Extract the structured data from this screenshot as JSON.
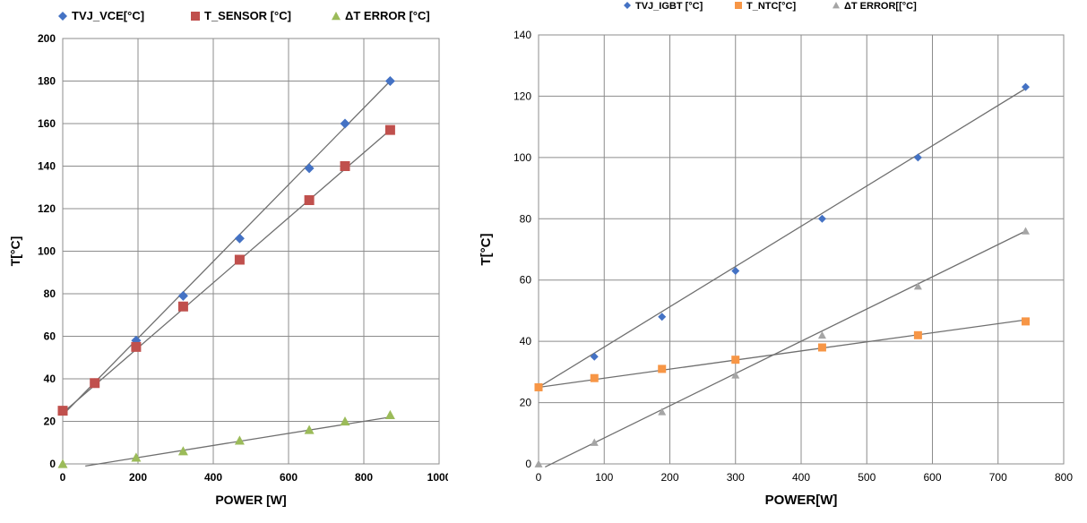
{
  "chart_data": [
    {
      "type": "scatter",
      "xlabel": "POWER [W]",
      "ylabel": "T[°C]",
      "xlim": [
        0,
        1000
      ],
      "ylim": [
        0,
        200
      ],
      "x_ticks": [
        "0",
        "200",
        "400",
        "600",
        "800",
        "1000"
      ],
      "y_ticks": [
        "0",
        "20",
        "40",
        "60",
        "80",
        "100",
        "120",
        "140",
        "160",
        "180",
        "200"
      ],
      "grid": true,
      "legend_position": "top",
      "series": [
        {
          "name": "TVJ_VCE[°C]",
          "color": "#4472c4",
          "marker": "diamond",
          "x": [
            0,
            85,
            195,
            320,
            470,
            655,
            750,
            870
          ],
          "y": [
            25,
            38,
            58,
            79,
            106,
            139,
            160,
            180
          ],
          "trend": [
            [
              0,
              23
            ],
            [
              870,
              180
            ]
          ]
        },
        {
          "name": "T_SENSOR [°C]",
          "color": "#c0504d",
          "marker": "square",
          "x": [
            0,
            85,
            195,
            320,
            470,
            655,
            750,
            870
          ],
          "y": [
            25,
            38,
            55,
            74,
            96,
            124,
            140,
            157
          ],
          "trend": [
            [
              0,
              24
            ],
            [
              870,
              157
            ]
          ]
        },
        {
          "name": "ΔT ERROR [°C]",
          "color": "#9bbb59",
          "marker": "triangle",
          "x": [
            0,
            195,
            320,
            470,
            655,
            750,
            870
          ],
          "y": [
            0,
            3,
            6,
            11,
            16,
            20,
            23
          ],
          "trend": [
            [
              60,
              -1
            ],
            [
              870,
              22
            ]
          ]
        }
      ]
    },
    {
      "type": "scatter",
      "xlabel": "POWER[W]",
      "ylabel": "T[°C]",
      "xlim": [
        0,
        800
      ],
      "ylim": [
        0,
        140
      ],
      "x_ticks": [
        "0",
        "100",
        "200",
        "300",
        "400",
        "500",
        "600",
        "700",
        "800"
      ],
      "y_ticks": [
        "0",
        "20",
        "40",
        "60",
        "80",
        "100",
        "120",
        "140"
      ],
      "grid": true,
      "legend_position": "top",
      "series": [
        {
          "name": "TVJ_IGBT [°C]",
          "color": "#4472c4",
          "marker": "diamond",
          "x": [
            0,
            85,
            188,
            300,
            432,
            578,
            742
          ],
          "y": [
            25,
            35,
            48,
            63,
            80,
            100,
            123
          ],
          "trend": [
            [
              0,
              25
            ],
            [
              742,
              122.5
            ]
          ]
        },
        {
          "name": "T_NTC[°C]",
          "color": "#f79646",
          "marker": "square",
          "x": [
            0,
            85,
            188,
            300,
            432,
            578,
            742
          ],
          "y": [
            25,
            28,
            31,
            34,
            38,
            42,
            46.5
          ],
          "trend": [
            [
              0,
              25
            ],
            [
              742,
              47
            ]
          ]
        },
        {
          "name": "ΔT ERROR[[°C]",
          "color": "#a5a5a5",
          "marker": "triangle",
          "x": [
            0,
            85,
            188,
            300,
            432,
            578,
            742
          ],
          "y": [
            0,
            7,
            17,
            29,
            42,
            58,
            76
          ],
          "trend": [
            [
              10,
              -1
            ],
            [
              742,
              76
            ]
          ]
        }
      ]
    }
  ]
}
